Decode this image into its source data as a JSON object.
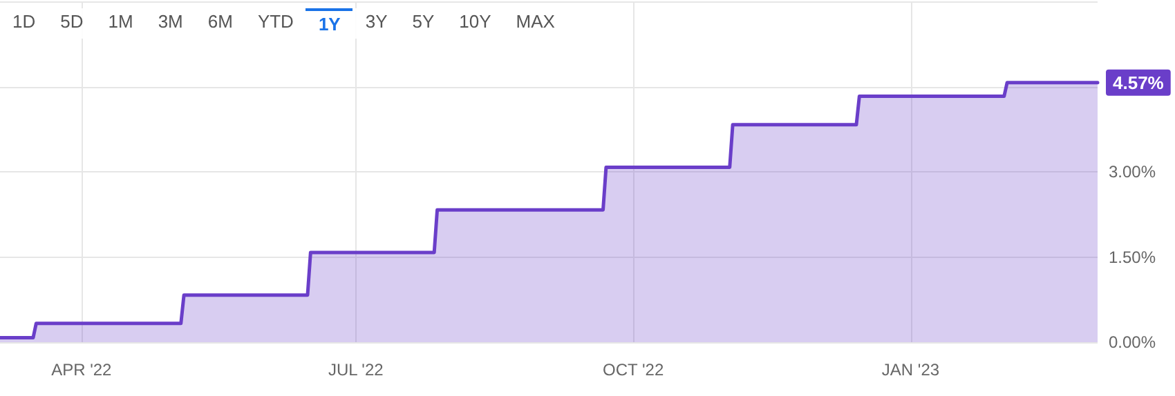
{
  "chart_data": {
    "type": "area",
    "annotations": [
      "1D",
      "5D",
      "1M",
      "3M",
      "6M",
      "YTD",
      "1Y",
      "3Y",
      "5Y",
      "10Y",
      "MAX"
    ],
    "x": [
      "2022-03-05",
      "2022-03-16",
      "2022-03-17",
      "2022-05-04",
      "2022-05-05",
      "2022-06-15",
      "2022-06-16",
      "2022-07-27",
      "2022-07-28",
      "2022-09-21",
      "2022-09-22",
      "2022-11-02",
      "2022-11-03",
      "2022-12-14",
      "2022-12-15",
      "2023-02-01",
      "2023-02-02",
      "2023-03-04"
    ],
    "series": [
      {
        "color": "#6a3ec9",
        "values": [
          0.08,
          0.08,
          0.33,
          0.33,
          0.83,
          0.83,
          1.58,
          1.58,
          2.33,
          2.33,
          3.08,
          3.08,
          3.83,
          3.83,
          4.33,
          4.33,
          4.57,
          4.57
        ],
        "value_labels": [
          null,
          null,
          null,
          null,
          null,
          null,
          null,
          null,
          null,
          null,
          null,
          null,
          null,
          null,
          null,
          null,
          null,
          "4.57%"
        ]
      }
    ],
    "xlim": [
      "2022-03-05",
      "2023-03-04"
    ],
    "xticks": [
      {
        "value": "2022-04-01",
        "label": "APR '22"
      },
      {
        "value": "2022-07-01",
        "label": "JUL '22"
      },
      {
        "value": "2022-10-01",
        "label": "OCT '22"
      },
      {
        "value": "2023-01-01",
        "label": "JAN '23"
      }
    ],
    "ylim": [
      0,
      6
    ],
    "yticks": [
      {
        "value": 0,
        "label": "0.00%"
      },
      {
        "value": 1.5,
        "label": "1.50%"
      },
      {
        "value": 3,
        "label": "3.00%"
      },
      {
        "value": 4.5,
        "label": null
      },
      {
        "value": 6,
        "label": null
      }
    ],
    "grid": true,
    "marker": "none",
    "line_style": "solid"
  }
}
